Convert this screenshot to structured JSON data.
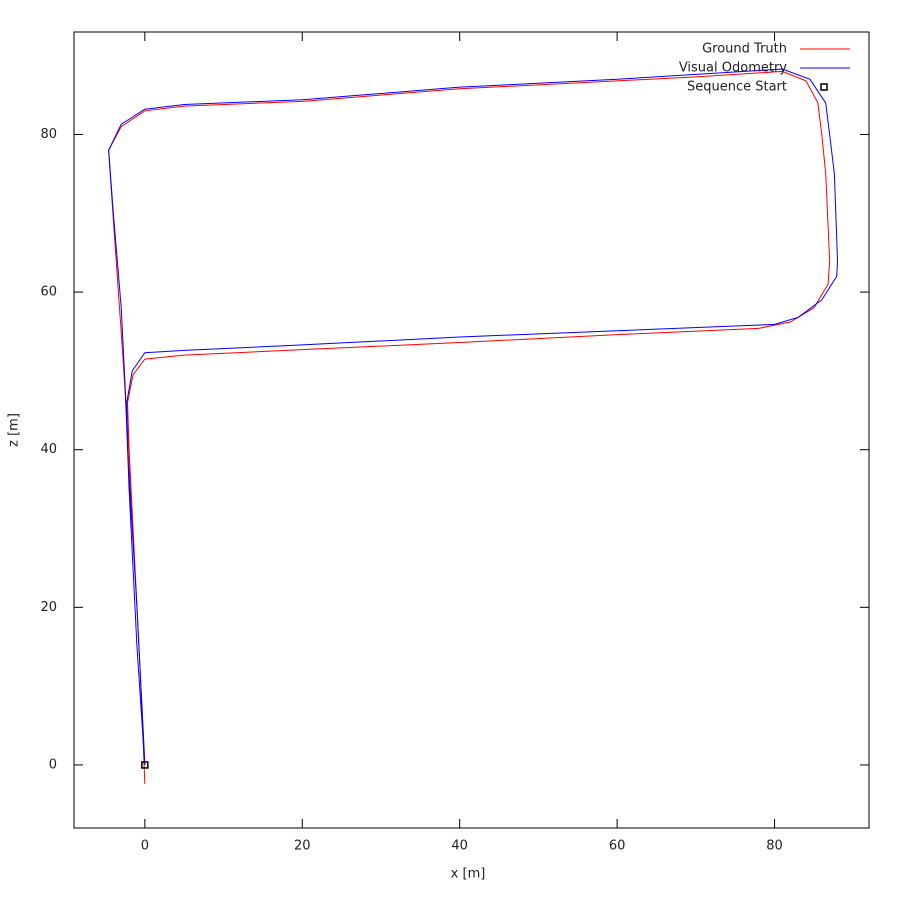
{
  "chart_data": {
    "type": "line",
    "xlabel": "x [m]",
    "ylabel": "z [m]",
    "xlim": [
      -9,
      92
    ],
    "ylim": [
      -8,
      93
    ],
    "xticks": [
      0,
      20,
      40,
      60,
      80
    ],
    "yticks": [
      0,
      20,
      40,
      60,
      80
    ],
    "grid": false,
    "legend": "top-right",
    "series": [
      {
        "name": "Ground Truth",
        "color": "#ff0000",
        "x": [
          0,
          -1,
          -2,
          -2.2,
          -1.5,
          0,
          5,
          20,
          40,
          60,
          78,
          82,
          85,
          86.8,
          87,
          86.5,
          86,
          85.5,
          84,
          81,
          70,
          60,
          40,
          20,
          5,
          0,
          -3,
          -4.6,
          -4.2,
          -3.5,
          -2.8,
          -2.3,
          -1.5,
          -0.5,
          0
        ],
        "values": [
          0,
          20,
          40,
          46,
          49.5,
          51.5,
          52,
          52.7,
          53.6,
          54.6,
          55.4,
          56.2,
          58,
          61,
          64,
          75,
          80,
          84,
          86.8,
          88,
          87.3,
          86.8,
          85.8,
          84.2,
          83.6,
          83,
          81,
          78,
          72,
          62,
          52,
          44,
          30,
          10,
          -2.4
        ]
      },
      {
        "name": "Visual Odometry",
        "color": "#0000ff",
        "x": [
          0,
          -1,
          -2.2,
          -2.3,
          -1.6,
          0,
          5,
          20,
          40,
          60,
          80,
          83,
          86,
          87.9,
          88,
          87.6,
          87,
          86.5,
          84.5,
          81,
          60,
          40,
          20,
          5,
          0,
          -3,
          -4.6,
          -4,
          -3,
          -2.5,
          -2,
          -1,
          0
        ],
        "values": [
          0,
          20,
          40,
          46,
          50,
          52.3,
          52.6,
          53.3,
          54.3,
          55.1,
          55.9,
          56.8,
          59,
          62,
          64,
          75,
          80,
          84,
          87,
          88.3,
          87,
          86,
          84.4,
          83.8,
          83.2,
          81.3,
          78,
          70,
          58,
          48,
          35,
          15,
          0
        ]
      },
      {
        "name": "Sequence Start",
        "color": "#000000",
        "marker": "square",
        "x": [
          0
        ],
        "values": [
          0
        ]
      }
    ]
  }
}
